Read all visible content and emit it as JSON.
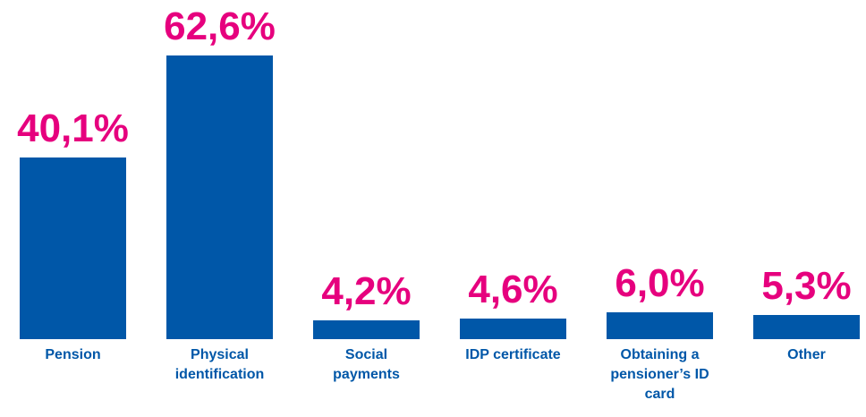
{
  "chart_data": {
    "type": "bar",
    "categories": [
      "Pension",
      "Physical identification",
      "Social payments",
      "IDP certificate",
      "Obtaining a pensioner’s ID card",
      "Other"
    ],
    "values": [
      40.1,
      62.6,
      4.2,
      4.6,
      6.0,
      5.3
    ],
    "value_labels": [
      "40,1%",
      "62,6%",
      "4,2%",
      "4,6%",
      "6,0%",
      "5,3%"
    ],
    "color": "#0057a8",
    "label_color": "#e6007e"
  }
}
